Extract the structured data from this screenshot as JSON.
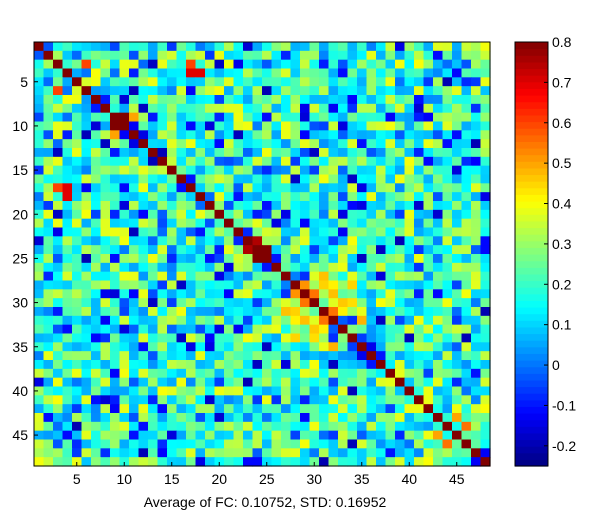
{
  "chart_data": {
    "type": "heatmap",
    "title": "—",
    "xlabel": "Average of FC: 0.10752, STD: 0.16952",
    "ylabel": "",
    "n": 48,
    "x_ticks": [
      5,
      10,
      15,
      20,
      25,
      30,
      35,
      40,
      45
    ],
    "y_ticks": [
      5,
      10,
      15,
      20,
      25,
      30,
      35,
      40,
      45
    ],
    "colorbar": {
      "colormap": "jet",
      "range": [
        -0.25,
        0.8
      ],
      "ticks": [
        -0.2,
        -0.1,
        0,
        0.1,
        0.2,
        0.3,
        0.4,
        0.5,
        0.6,
        0.7,
        0.8
      ],
      "tick_labels": [
        "-0.2",
        "-0.1",
        "0",
        "0.1",
        "0.2",
        "0.3",
        "0.4",
        "0.5",
        "0.6",
        "0.7",
        "0.8"
      ]
    },
    "strong_pairs": [
      {
        "i": 3,
        "j": 6,
        "value": 0.6
      },
      {
        "i": 4,
        "j": 17,
        "value": 0.75
      },
      {
        "i": 4,
        "j": 18,
        "value": 0.7
      },
      {
        "i": 9,
        "j": 10,
        "value": 0.8
      },
      {
        "i": 9,
        "j": 11,
        "value": 0.5
      },
      {
        "i": 17,
        "j": 4,
        "value": 0.7
      },
      {
        "i": 17,
        "j": 3,
        "value": 0.6
      },
      {
        "i": 24,
        "j": 25,
        "value": 0.8
      },
      {
        "i": 23,
        "j": 24,
        "value": 0.75
      },
      {
        "i": 29,
        "j": 30,
        "value": 0.55
      },
      {
        "i": 31,
        "j": 32,
        "value": 0.55
      },
      {
        "i": 44,
        "j": 46,
        "value": 0.55
      },
      {
        "i": 43,
        "j": 45,
        "value": 0.5
      }
    ]
  }
}
